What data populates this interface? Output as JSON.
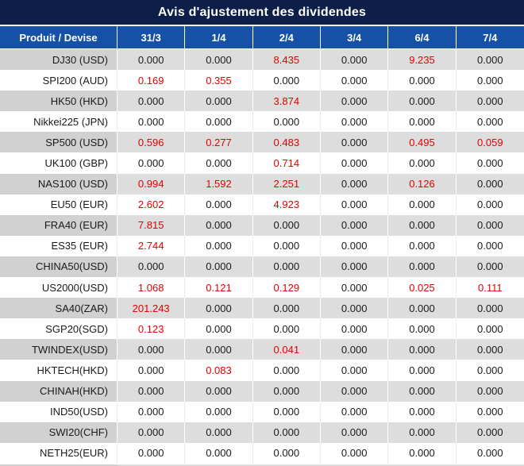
{
  "title": "Avis d'ajustement des dividendes",
  "table": {
    "corner_header": "Produit / Devise",
    "date_headers": [
      "31/3",
      "1/4",
      "2/4",
      "3/4",
      "6/4",
      "7/4"
    ],
    "zero_value": "0.000",
    "rows": [
      {
        "product": "DJ30 (USD)",
        "values": [
          "0.000",
          "0.000",
          "8.435",
          "0.000",
          "9.235",
          "0.000"
        ]
      },
      {
        "product": "SPI200 (AUD)",
        "values": [
          "0.169",
          "0.355",
          "0.000",
          "0.000",
          "0.000",
          "0.000"
        ]
      },
      {
        "product": "HK50 (HKD)",
        "values": [
          "0.000",
          "0.000",
          "3.874",
          "0.000",
          "0.000",
          "0.000"
        ]
      },
      {
        "product": "Nikkei225 (JPN)",
        "values": [
          "0.000",
          "0.000",
          "0.000",
          "0.000",
          "0.000",
          "0.000"
        ]
      },
      {
        "product": "SP500 (USD)",
        "values": [
          "0.596",
          "0.277",
          "0.483",
          "0.000",
          "0.495",
          "0.059"
        ]
      },
      {
        "product": "UK100 (GBP)",
        "values": [
          "0.000",
          "0.000",
          "0.714",
          "0.000",
          "0.000",
          "0.000"
        ]
      },
      {
        "product": "NAS100 (USD)",
        "values": [
          "0.994",
          "1.592",
          "2.251",
          "0.000",
          "0.126",
          "0.000"
        ]
      },
      {
        "product": "EU50 (EUR)",
        "values": [
          "2.602",
          "0.000",
          "4.923",
          "0.000",
          "0.000",
          "0.000"
        ]
      },
      {
        "product": "FRA40 (EUR)",
        "values": [
          "7.815",
          "0.000",
          "0.000",
          "0.000",
          "0.000",
          "0.000"
        ]
      },
      {
        "product": "ES35 (EUR)",
        "values": [
          "2.744",
          "0.000",
          "0.000",
          "0.000",
          "0.000",
          "0.000"
        ]
      },
      {
        "product": "CHINA50(USD)",
        "values": [
          "0.000",
          "0.000",
          "0.000",
          "0.000",
          "0.000",
          "0.000"
        ]
      },
      {
        "product": "US2000(USD)",
        "values": [
          "1.068",
          "0.121",
          "0.129",
          "0.000",
          "0.025",
          "0.111"
        ]
      },
      {
        "product": "SA40(ZAR)",
        "values": [
          "201.243",
          "0.000",
          "0.000",
          "0.000",
          "0.000",
          "0.000"
        ]
      },
      {
        "product": "SGP20(SGD)",
        "values": [
          "0.123",
          "0.000",
          "0.000",
          "0.000",
          "0.000",
          "0.000"
        ]
      },
      {
        "product": "TWINDEX(USD)",
        "values": [
          "0.000",
          "0.000",
          "0.041",
          "0.000",
          "0.000",
          "0.000"
        ]
      },
      {
        "product": "HKTECH(HKD)",
        "values": [
          "0.000",
          "0.083",
          "0.000",
          "0.000",
          "0.000",
          "0.000"
        ]
      },
      {
        "product": "CHINAH(HKD)",
        "values": [
          "0.000",
          "0.000",
          "0.000",
          "0.000",
          "0.000",
          "0.000"
        ]
      },
      {
        "product": "IND50(USD)",
        "values": [
          "0.000",
          "0.000",
          "0.000",
          "0.000",
          "0.000",
          "0.000"
        ]
      },
      {
        "product": "SWI20(CHF)",
        "values": [
          "0.000",
          "0.000",
          "0.000",
          "0.000",
          "0.000",
          "0.000"
        ]
      },
      {
        "product": "NETH25(EUR)",
        "values": [
          "0.000",
          "0.000",
          "0.000",
          "0.000",
          "0.000",
          "0.000"
        ]
      }
    ]
  },
  "colors": {
    "title_bg": "#0d1e48",
    "header_bg": "#1552a5",
    "header_text": "#ffffff",
    "red": "#e50000",
    "text": "#1a1a1a",
    "row_gray_label": "#d1d1d1",
    "row_gray": "#dddddd",
    "white_row_divider": "#ececec"
  }
}
